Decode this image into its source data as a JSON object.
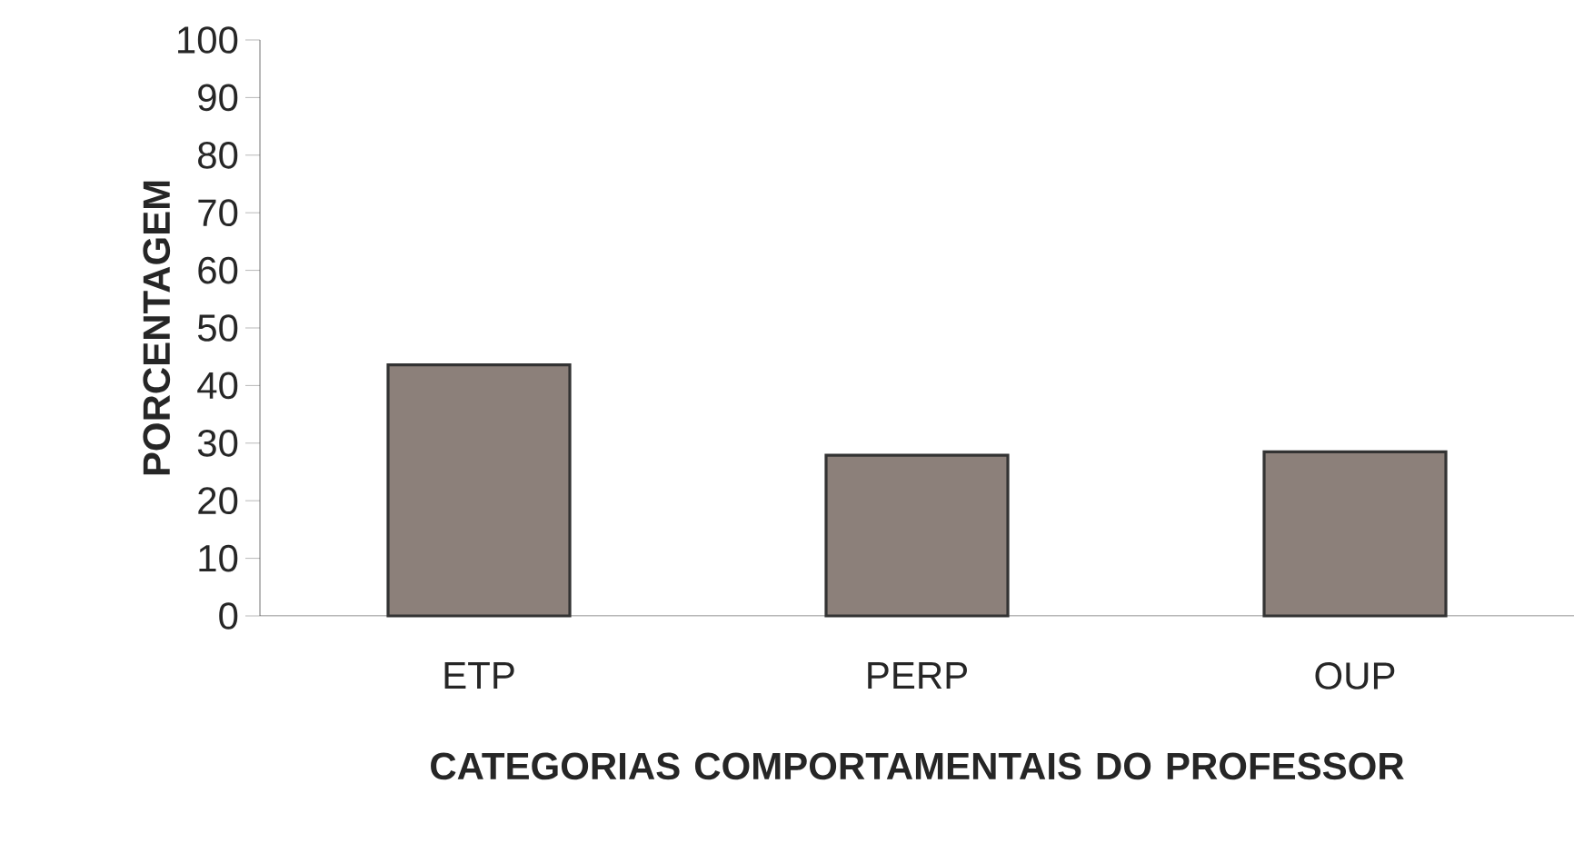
{
  "chart_data": {
    "type": "bar",
    "xlabel": "CATEGORIAS COMPORTAMENTAIS DO PROFESSOR",
    "ylabel": "PORCENTAGEM",
    "categories": [
      "ETP",
      "PERP",
      "OUP"
    ],
    "values": [
      43.6,
      27.9,
      28.5
    ],
    "color": "#8c807a",
    "ylim": [
      0,
      100
    ],
    "yticks": [
      0,
      10,
      20,
      30,
      40,
      50,
      60,
      70,
      80,
      90,
      100
    ]
  }
}
